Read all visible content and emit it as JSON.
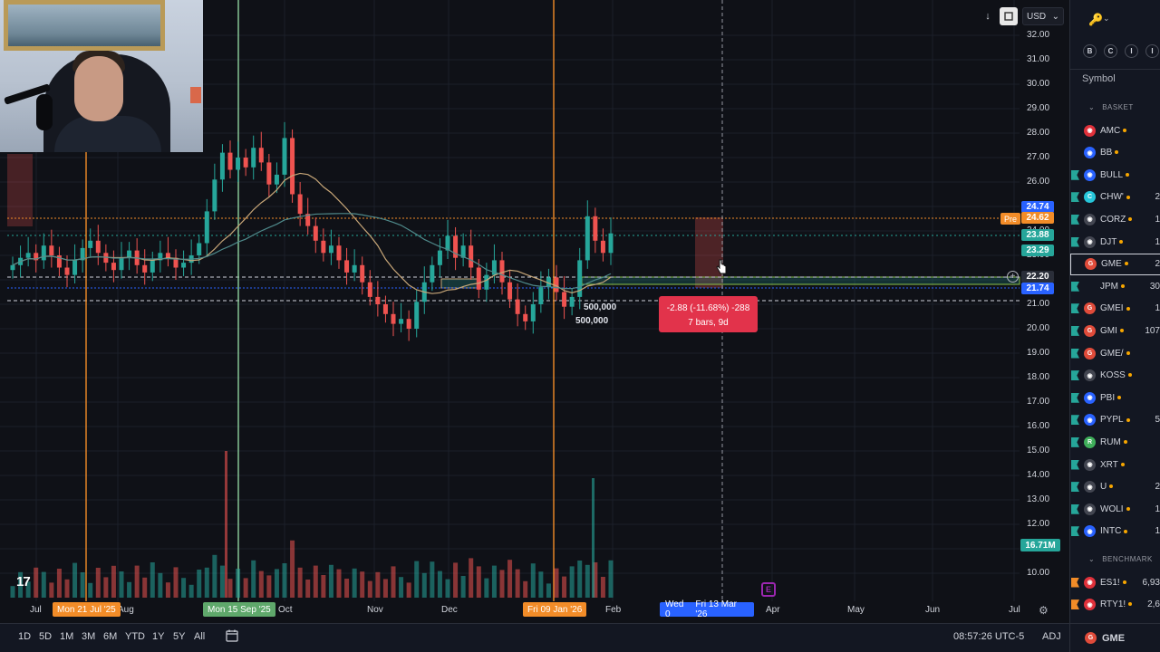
{
  "chart_data": {
    "type": "candlestick",
    "symbol": "GME",
    "currency": "USD",
    "y_ticks": [
      "32.00",
      "31.00",
      "30.00",
      "29.00",
      "28.00",
      "27.00",
      "26.00",
      "25.00",
      "24.00",
      "23.00",
      "22.00",
      "21.00",
      "20.00",
      "19.00",
      "18.00",
      "17.00",
      "16.00",
      "15.00",
      "14.00",
      "13.00",
      "12.00",
      "11.00",
      "10.00"
    ],
    "x_ticks": [
      "Jul",
      "Aug",
      "Oct",
      "Nov",
      "Dec",
      "Feb",
      "Apr",
      "May",
      "Jun",
      "Jul"
    ],
    "ylim": [
      10,
      32
    ],
    "closes": [
      22.6,
      22.9,
      23.1,
      22.8,
      23.4,
      23.0,
      22.5,
      22.2,
      22.8,
      23.3,
      23.6,
      23.1,
      22.7,
      22.4,
      22.9,
      23.2,
      22.6,
      22.3,
      22.8,
      23.1,
      22.9,
      22.5,
      22.7,
      23.0,
      23.5,
      24.8,
      26.1,
      27.2,
      26.5,
      27.0,
      26.6,
      27.4,
      26.8,
      25.9,
      26.3,
      27.8,
      25.5,
      24.7,
      24.2,
      23.6,
      23.1,
      23.4,
      22.8,
      22.3,
      22.6,
      21.9,
      21.3,
      21.0,
      20.6,
      20.2,
      20.4,
      20.0,
      21.1,
      21.9,
      22.6,
      23.2,
      23.8,
      22.9,
      23.4,
      22.5,
      21.6,
      22.2,
      22.8,
      21.9,
      21.2,
      20.6,
      20.3,
      21.0,
      21.7,
      22.1,
      21.5,
      20.9,
      21.3,
      22.8,
      24.6,
      23.6,
      23.1,
      23.9
    ],
    "volume_tag": "16.71M",
    "volume_annotations": [
      "500,000",
      "500,000"
    ],
    "price_tags": [
      {
        "value": "24.74",
        "color": "#2962ff"
      },
      {
        "value": "24.62",
        "color": "#f28c28",
        "label": "Pre"
      },
      {
        "value": "23.88",
        "color": "#26a69a"
      },
      {
        "value": "23.29",
        "color": "#26a69a"
      },
      {
        "value": "22.20",
        "color": "#2a2e39"
      },
      {
        "value": "21.74",
        "color": "#2962ff"
      }
    ],
    "time_tags": [
      {
        "label": "Mon 21 Jul '25",
        "color": "#f28c28"
      },
      {
        "label": "Mon 15 Sep '25",
        "color": "#5fa86b"
      },
      {
        "label": "Fri 09 Jan '26",
        "color": "#f28c28"
      }
    ],
    "date_range": [
      "Wed 0",
      "Fri 13 Mar '26"
    ],
    "measure": {
      "line1": "-2.88 (-11.68%) -288",
      "line2": "7 bars, 9d"
    },
    "colors": {
      "up": "#26a69a",
      "down": "#ef5350",
      "ma1": "#c7a678",
      "ma2": "#4f8a8b"
    }
  },
  "toolbar": {
    "timeframes": [
      "1D",
      "5D",
      "1M",
      "3M",
      "6M",
      "YTD",
      "1Y",
      "5Y",
      "All"
    ],
    "clock": "08:57:26 UTC-5",
    "adj": "ADJ",
    "tv_logo": "17"
  },
  "watchlist": {
    "format_buttons": [
      "B",
      "C",
      "I",
      "I"
    ],
    "symbol_header": "Symbol",
    "basket_label": "BASKET",
    "benchmark_label": "BENCHMARK",
    "bottom_symbol": "GME",
    "items": [
      {
        "ticker": "AMC",
        "logo": "red",
        "val": ""
      },
      {
        "ticker": "BB",
        "logo": "blue",
        "val": ""
      },
      {
        "ticker": "BULL",
        "logo": "blue",
        "val": ""
      },
      {
        "ticker": "CHW'",
        "logo": "cyan",
        "val": "2"
      },
      {
        "ticker": "CORZ",
        "logo": "gray",
        "val": "1"
      },
      {
        "ticker": "DJT",
        "logo": "gray",
        "val": "1"
      },
      {
        "ticker": "GME",
        "logo": "gs",
        "val": "2"
      },
      {
        "ticker": "JPM",
        "logo": "none",
        "val": "30"
      },
      {
        "ticker": "GMEI",
        "logo": "gs",
        "val": "1"
      },
      {
        "ticker": "GMI",
        "logo": "gs",
        "val": "107"
      },
      {
        "ticker": "GME/",
        "logo": "gs",
        "val": ""
      },
      {
        "ticker": "KOSS",
        "logo": "gray",
        "val": ""
      },
      {
        "ticker": "PBI",
        "logo": "blue",
        "val": ""
      },
      {
        "ticker": "PYPL",
        "logo": "blue",
        "val": "5"
      },
      {
        "ticker": "RUM",
        "logo": "green",
        "val": ""
      },
      {
        "ticker": "XRT",
        "logo": "gray",
        "val": ""
      },
      {
        "ticker": "U",
        "logo": "gray",
        "val": "2"
      },
      {
        "ticker": "WOLI",
        "logo": "gray",
        "val": "1"
      },
      {
        "ticker": "INTC",
        "logo": "blue",
        "val": "1"
      }
    ],
    "benchmark": [
      {
        "ticker": "ES1!",
        "logo": "red",
        "val": "6,93"
      },
      {
        "ticker": "RTY1!",
        "logo": "red",
        "val": "2,6"
      }
    ]
  }
}
